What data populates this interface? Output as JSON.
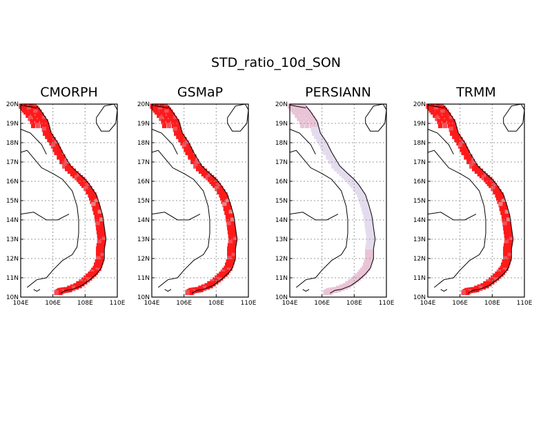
{
  "figure": {
    "title": "STD_ratio_10d_SON"
  },
  "axes": {
    "lat_ticks": [
      "20N",
      "19N",
      "18N",
      "17N",
      "16N",
      "15N",
      "14N",
      "13N",
      "12N",
      "11N",
      "10N"
    ],
    "lon_ticks": [
      "104E",
      "106E",
      "108E",
      "110E"
    ],
    "lon_range": [
      104,
      110
    ],
    "lat_range": [
      10,
      20
    ],
    "grid": "dotted"
  },
  "colors": {
    "strong_red": "#ff1a1a",
    "medium_red": "#f2505a",
    "light_red": "#f08080",
    "pale_pink": "#e9c4d6",
    "pale_lilac": "#e4dcee",
    "coast": "#000000",
    "grid": "#9a9a9a"
  },
  "panels": [
    {
      "title": "CMORPH",
      "shade": "red"
    },
    {
      "title": "GSMaP",
      "shade": "red"
    },
    {
      "title": "PERSIANN",
      "shade": "pale"
    },
    {
      "title": "TRMM",
      "shade": "red"
    }
  ]
}
